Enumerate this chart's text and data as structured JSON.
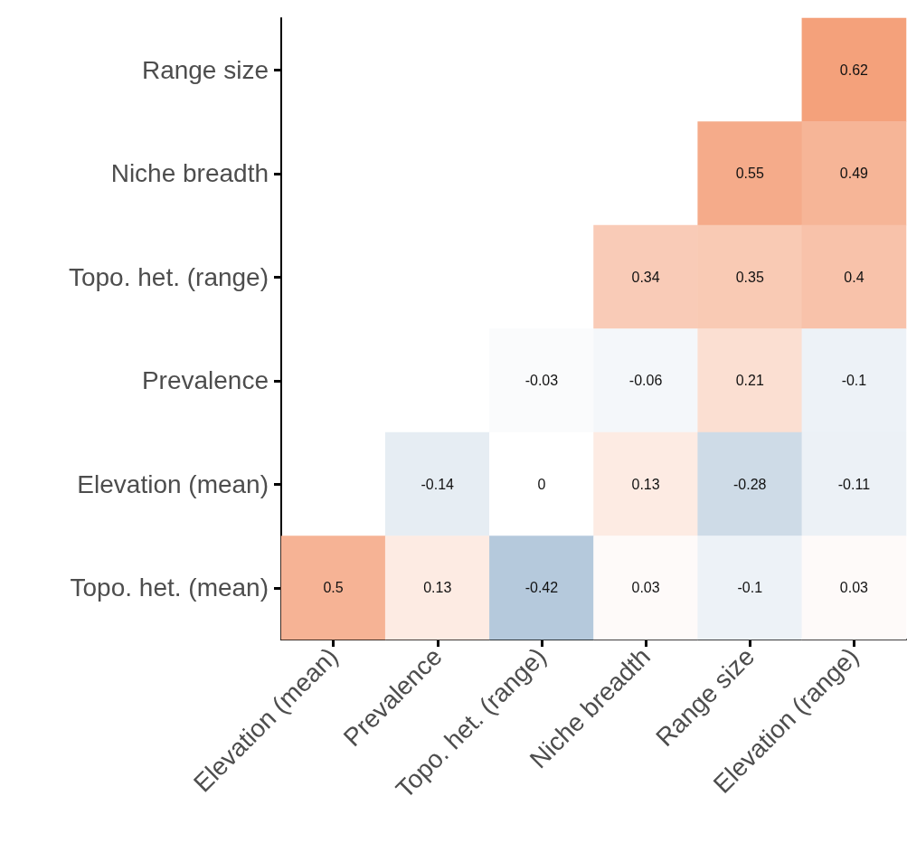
{
  "chart_data": {
    "type": "heatmap",
    "categories": [
      "Elevation (mean)",
      "Prevalence",
      "Topo. het. (range)",
      "Niche breadth",
      "Range size",
      "Elevation (range)"
    ],
    "y_categories": [
      "Range size",
      "Niche breadth",
      "Topo. het. (range)",
      "Prevalence",
      "Elevation (mean)",
      "Topo. het. (mean)"
    ],
    "cells": [
      [
        null,
        null,
        null,
        null,
        null,
        0.62
      ],
      [
        null,
        null,
        null,
        null,
        0.55,
        0.49
      ],
      [
        null,
        null,
        null,
        0.34,
        0.35,
        0.4
      ],
      [
        null,
        null,
        -0.03,
        -0.06,
        0.21,
        -0.1
      ],
      [
        null,
        -0.14,
        0,
        0.13,
        -0.28,
        -0.11
      ],
      [
        0.5,
        0.13,
        -0.42,
        0.03,
        -0.1,
        0.03
      ]
    ],
    "data_labels": true
  }
}
